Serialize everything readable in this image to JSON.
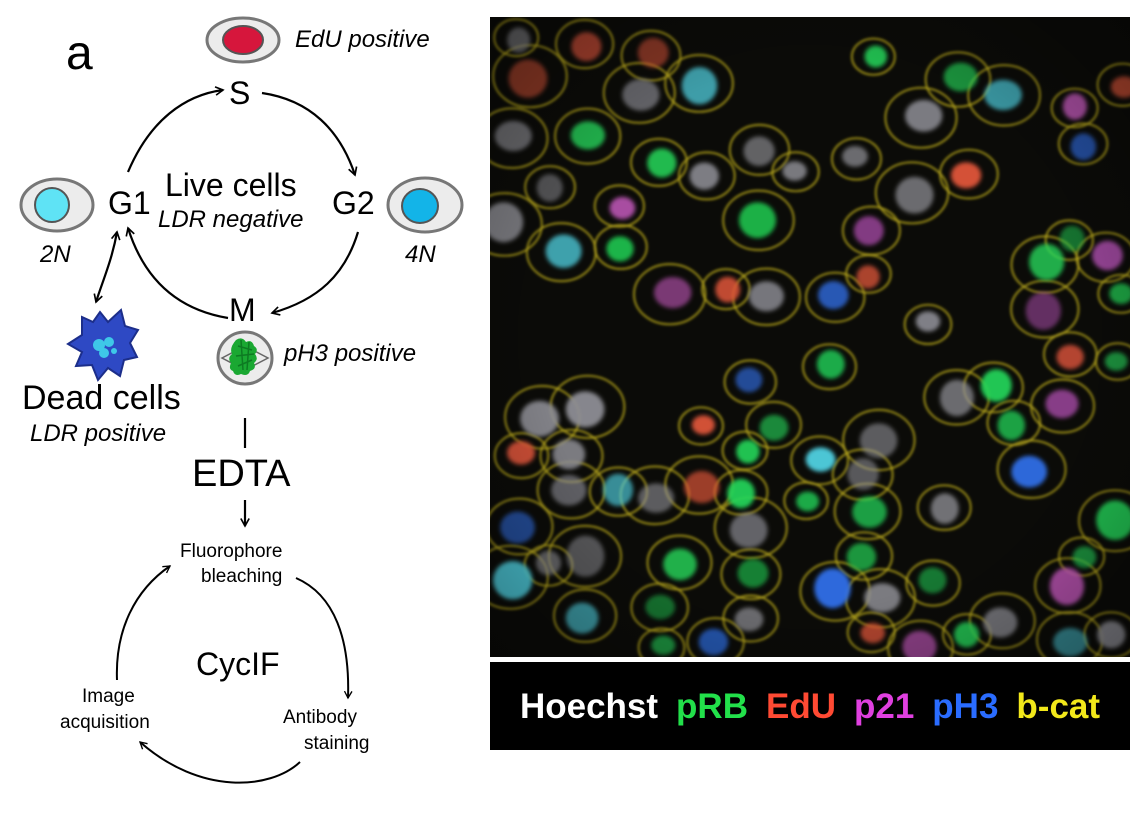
{
  "panel_label": "a",
  "cell_cycle": {
    "phases": {
      "s": "S",
      "g1": "G1",
      "g2": "G2",
      "m": "M"
    },
    "center_title": "Live cells",
    "center_subtitle": "LDR negative",
    "edu_label": "EdU positive",
    "ph3_label": "pH3 positive",
    "g1_dna": "2N",
    "g2_dna": "4N",
    "dead_title": "Dead cells",
    "dead_subtitle": "LDR positive"
  },
  "edta_label": "EDTA",
  "cycif": {
    "center": "CycIF",
    "step_bleach_1": "Fluorophore",
    "step_bleach_2": "bleaching",
    "step_stain_1": "Antibody",
    "step_stain_2": "staining",
    "step_image_1": "Image",
    "step_image_2": "acquisition"
  },
  "legend": [
    {
      "label": "Hoechst",
      "color": "#ffffff"
    },
    {
      "label": "pRB",
      "color": "#22e04a"
    },
    {
      "label": "EdU",
      "color": "#ff4a33"
    },
    {
      "label": "p21",
      "color": "#e040e0"
    },
    {
      "label": "pH3",
      "color": "#2a6cff"
    },
    {
      "label": "b-cat",
      "color": "#f2e81a"
    }
  ],
  "colors": {
    "edu_nucleus": "#d6163c",
    "g1_nucleus": "#5fe3f5",
    "g2_nucleus": "#13b4e8",
    "dead_cell": "#2e49c4",
    "chromosomes": "#1aa832"
  }
}
